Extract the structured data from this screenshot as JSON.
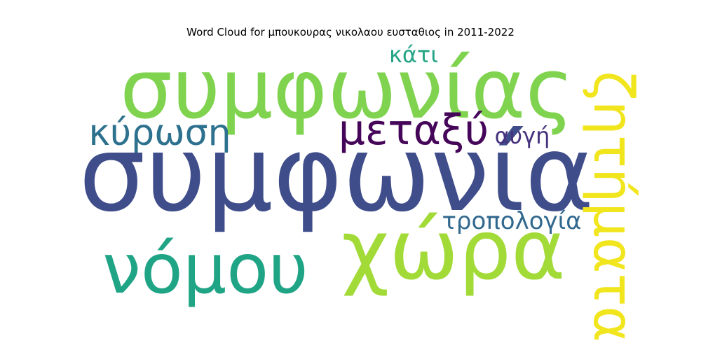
{
  "chart_data": {
    "type": "wordcloud",
    "title": "Word Cloud for μπουκουρας νικολαου ευσταθιος in 2011-2022",
    "words": [
      {
        "text": "συμφωνία",
        "color": "#3f4d8a"
      },
      {
        "text": "συμφωνίας",
        "color": "#7fd34e"
      },
      {
        "text": "χώρα",
        "color": "#a2da37"
      },
      {
        "text": "νόμου",
        "color": "#20a486"
      },
      {
        "text": "ζητήματα",
        "color": "#f1e51d"
      },
      {
        "text": "μεταξύ",
        "color": "#450559"
      },
      {
        "text": "κύρωση",
        "color": "#2d718e"
      },
      {
        "text": "τροπολογία",
        "color": "#31688e"
      },
      {
        "text": "κάτι",
        "color": "#25a586"
      },
      {
        "text": "αυγή",
        "color": "#46327e"
      }
    ]
  }
}
